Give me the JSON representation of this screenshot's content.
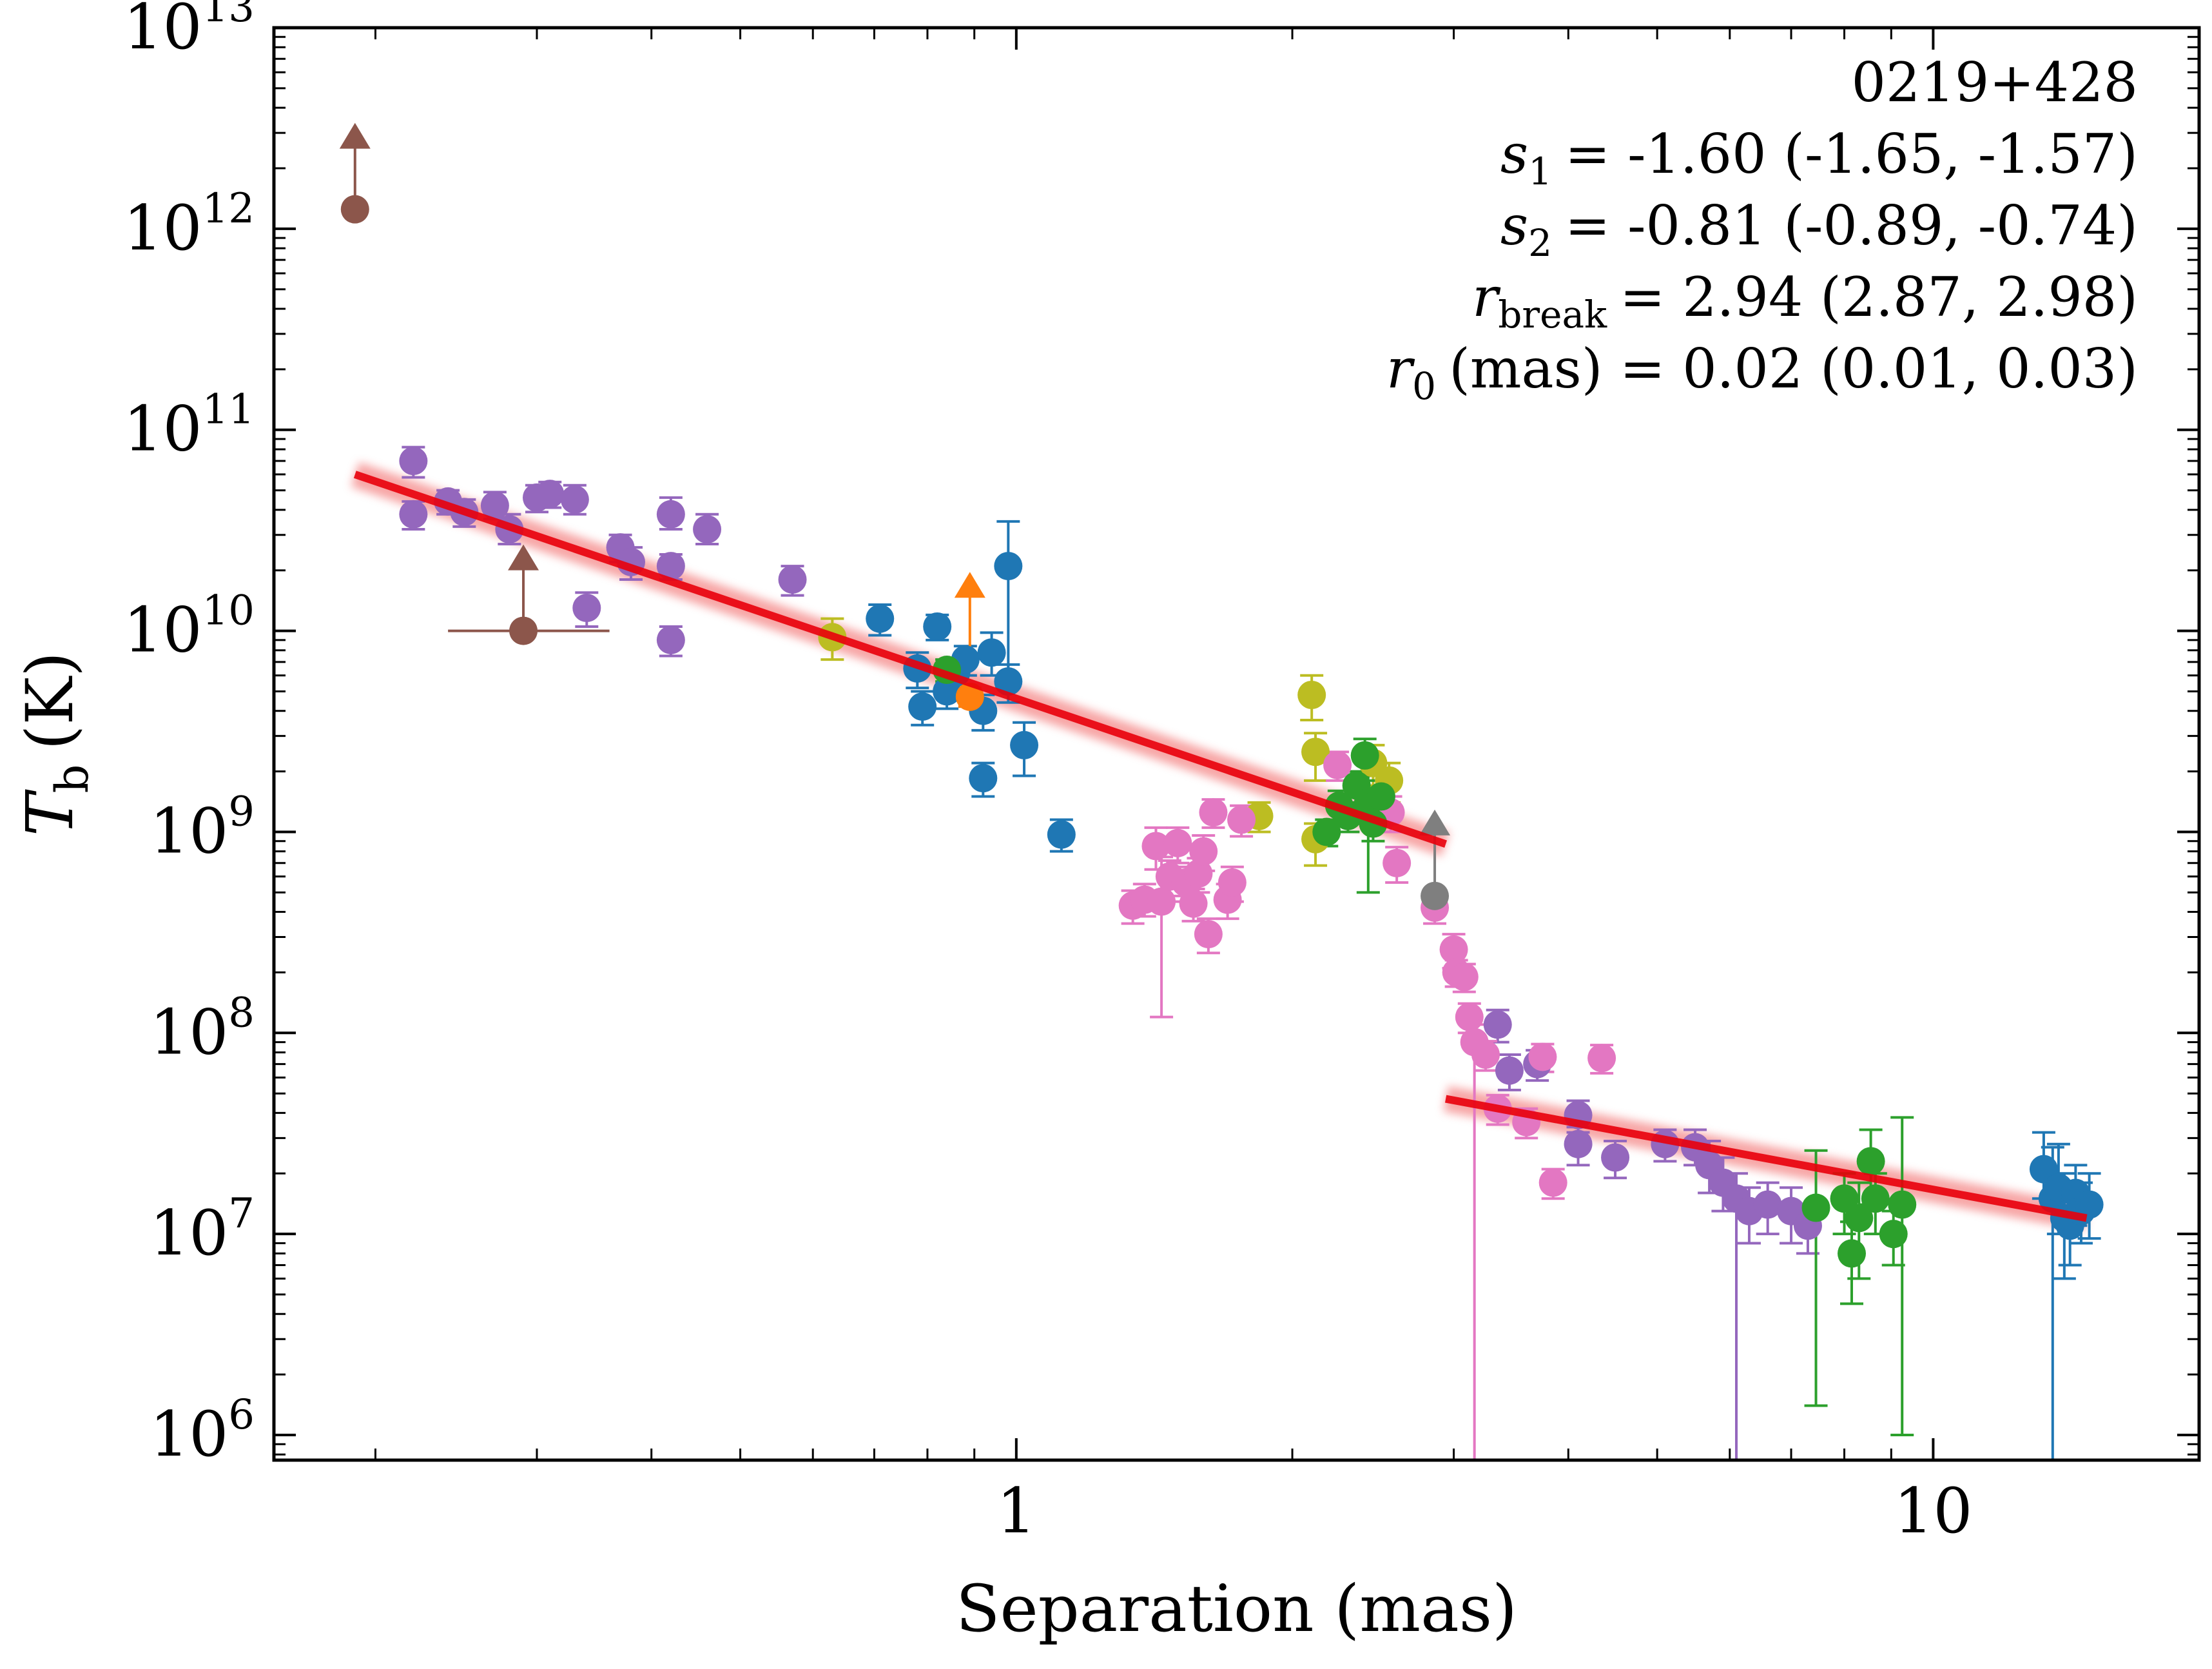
{
  "chart_data": {
    "type": "scatter",
    "title": "",
    "xlabel": "Separation (mas)",
    "ylabel_symbol": "T",
    "ylabel_sub": "b",
    "ylabel_unit": "(K)",
    "xscale": "log",
    "yscale": "log",
    "xlim": [
      0.155,
      19.5
    ],
    "ylim": [
      750000.0,
      10000000000000.0
    ],
    "x_ticks": [
      {
        "value": 1,
        "label": "1"
      },
      {
        "value": 10,
        "label": "10"
      }
    ],
    "y_ticks": [
      {
        "value": 1000000.0,
        "base": "10",
        "exp": "6"
      },
      {
        "value": 10000000.0,
        "base": "10",
        "exp": "7"
      },
      {
        "value": 100000000.0,
        "base": "10",
        "exp": "8"
      },
      {
        "value": 1000000000.0,
        "base": "10",
        "exp": "9"
      },
      {
        "value": 10000000000.0,
        "base": "10",
        "exp": "10"
      },
      {
        "value": 100000000000.0,
        "base": "10",
        "exp": "11"
      },
      {
        "value": 1000000000000.0,
        "base": "10",
        "exp": "12"
      },
      {
        "value": 10000000000000.0,
        "base": "10",
        "exp": "13"
      }
    ],
    "annotations": {
      "source": "0219+428",
      "s1": {
        "sym": "s",
        "sub": "1",
        "text": "= -1.60 (-1.65, -1.57)"
      },
      "s2": {
        "sym": "s",
        "sub": "2",
        "text": "= -0.81 (-0.89, -0.74)"
      },
      "rbreak": {
        "sym": "r",
        "sub": "break",
        "text": "= 2.94 (2.87, 2.98)"
      },
      "r0": {
        "sym": "r",
        "sub": "0",
        "text": "(mas) = 0.02 (0.01, 0.03)"
      }
    },
    "fit_segments": [
      {
        "name": "inner",
        "x": [
          0.19,
          2.94
        ],
        "y": [
          60000000000.0,
          870000000.0
        ],
        "color": "#e8000b"
      },
      {
        "name": "outer",
        "x": [
          2.94,
          14.7
        ],
        "y": [
          47000000.0,
          12000000.0
        ],
        "color": "#e8000b"
      }
    ],
    "series": [
      {
        "name": "brown",
        "color": "#8c564b",
        "points": [
          {
            "x": 0.19,
            "y": 1250000000000.0,
            "lower_limit": true,
            "xlo": null,
            "xhi": null,
            "ylo": null,
            "yhi": null
          },
          {
            "x": 0.29,
            "y": 10000000000.0,
            "lower_limit": true,
            "xlo": 0.24,
            "xhi": 0.36,
            "ylo": null,
            "yhi": null
          }
        ]
      },
      {
        "name": "purple",
        "color": "#9467bd",
        "points": [
          {
            "x": 0.22,
            "y": 70000000000.0,
            "ylo": 58000000000.0,
            "yhi": 82000000000.0
          },
          {
            "x": 0.22,
            "y": 38000000000.0,
            "ylo": 32000000000.0,
            "yhi": 44000000000.0
          },
          {
            "x": 0.24,
            "y": 44000000000.0,
            "ylo": 38000000000.0,
            "yhi": 50000000000.0
          },
          {
            "x": 0.25,
            "y": 39000000000.0,
            "ylo": 33000000000.0,
            "yhi": 45000000000.0
          },
          {
            "x": 0.27,
            "y": 42000000000.0,
            "ylo": 36000000000.0,
            "yhi": 49000000000.0
          },
          {
            "x": 0.28,
            "y": 32000000000.0,
            "ylo": 27000000000.0,
            "yhi": 38000000000.0
          },
          {
            "x": 0.3,
            "y": 46000000000.0,
            "ylo": 39000000000.0,
            "yhi": 53000000000.0
          },
          {
            "x": 0.31,
            "y": 48000000000.0,
            "ylo": 41000000000.0,
            "yhi": 55000000000.0
          },
          {
            "x": 0.33,
            "y": 45000000000.0,
            "ylo": 38000000000.0,
            "yhi": 53000000000.0
          },
          {
            "x": 0.34,
            "y": 13000000000.0,
            "ylo": 10500000000.0,
            "yhi": 15500000000.0
          },
          {
            "x": 0.37,
            "y": 26000000000.0,
            "ylo": 22000000000.0,
            "yhi": 30000000000.0
          },
          {
            "x": 0.38,
            "y": 22000000000.0,
            "ylo": 18000000000.0,
            "yhi": 26000000000.0
          },
          {
            "x": 0.42,
            "y": 38000000000.0,
            "ylo": 32000000000.0,
            "yhi": 46000000000.0
          },
          {
            "x": 0.42,
            "y": 21000000000.0,
            "ylo": 18000000000.0,
            "yhi": 24000000000.0
          },
          {
            "x": 0.42,
            "y": 9000000000.0,
            "ylo": 7500000000.0,
            "yhi": 10500000000.0
          },
          {
            "x": 0.46,
            "y": 32000000000.0,
            "ylo": 27000000000.0,
            "yhi": 38000000000.0
          },
          {
            "x": 0.57,
            "y": 18000000000.0,
            "ylo": 15000000000.0,
            "yhi": 21000000000.0
          },
          {
            "x": 3.35,
            "y": 110000000.0,
            "ylo": 90000000.0,
            "yhi": 130000000.0
          },
          {
            "x": 3.45,
            "y": 65000000.0,
            "ylo": 52000000.0,
            "yhi": 78000000.0
          },
          {
            "x": 3.7,
            "y": 70000000.0,
            "ylo": 58000000.0,
            "yhi": 82000000.0
          },
          {
            "x": 4.1,
            "y": 39000000.0,
            "ylo": 32000000.0,
            "yhi": 46000000.0
          },
          {
            "x": 4.1,
            "y": 28000000.0,
            "ylo": 22000000.0,
            "yhi": 34000000.0
          },
          {
            "x": 4.5,
            "y": 24000000.0,
            "ylo": 19000000.0,
            "yhi": 29000000.0
          },
          {
            "x": 5.1,
            "y": 28000000.0,
            "ylo": 23000000.0,
            "yhi": 33000000.0
          },
          {
            "x": 5.5,
            "y": 27000000.0,
            "ylo": 22000000.0,
            "yhi": 33000000.0
          },
          {
            "x": 5.7,
            "y": 22000000.0,
            "ylo": 16000000.0,
            "yhi": 29000000.0
          },
          {
            "x": 5.9,
            "y": 18000000.0,
            "ylo": 13000000.0,
            "yhi": 24000000.0
          },
          {
            "x": 6.1,
            "y": 15000000.0,
            "ylo": 750000.0,
            "yhi": 20000000.0
          },
          {
            "x": 6.3,
            "y": 13000000.0,
            "ylo": 9000000.0,
            "yhi": 17000000.0
          },
          {
            "x": 6.6,
            "y": 14000000.0,
            "ylo": 10000000.0,
            "yhi": 18000000.0
          },
          {
            "x": 7.0,
            "y": 13000000.0,
            "ylo": 9000000.0,
            "yhi": 17000000.0
          },
          {
            "x": 7.3,
            "y": 11000000.0,
            "ylo": 8000000.0,
            "yhi": 14000000.0
          }
        ]
      },
      {
        "name": "olive",
        "color": "#bcbd22",
        "points": [
          {
            "x": 0.63,
            "y": 9300000000.0,
            "ylo": 7200000000.0,
            "yhi": 11500000000.0
          },
          {
            "x": 1.84,
            "y": 1200000000.0,
            "ylo": 1000000000.0,
            "yhi": 1400000000.0
          },
          {
            "x": 2.1,
            "y": 4800000000.0,
            "ylo": 3600000000.0,
            "yhi": 6000000000.0
          },
          {
            "x": 2.12,
            "y": 2500000000.0,
            "ylo": 1800000000.0,
            "yhi": 3100000000.0
          },
          {
            "x": 2.12,
            "y": 920000000.0,
            "ylo": 680000000.0,
            "yhi": 1100000000.0
          },
          {
            "x": 2.45,
            "y": 2200000000.0,
            "ylo": 1700000000.0,
            "yhi": 2700000000.0
          },
          {
            "x": 2.55,
            "y": 1800000000.0,
            "ylo": 1400000000.0,
            "yhi": 2200000000.0
          }
        ]
      },
      {
        "name": "blue",
        "color": "#1f77b4",
        "points": [
          {
            "x": 0.71,
            "y": 11500000000.0,
            "ylo": 9500000000.0,
            "yhi": 13500000000.0
          },
          {
            "x": 0.78,
            "y": 6500000000.0,
            "ylo": 5200000000.0,
            "yhi": 7800000000.0
          },
          {
            "x": 0.79,
            "y": 4200000000.0,
            "ylo": 3400000000.0,
            "yhi": 5000000000.0
          },
          {
            "x": 0.82,
            "y": 10500000000.0,
            "ylo": 9000000000.0,
            "yhi": 12000000000.0
          },
          {
            "x": 0.84,
            "y": 5000000000.0,
            "ylo": 4100000000.0,
            "yhi": 5900000000.0
          },
          {
            "x": 0.86,
            "y": 6200000000.0,
            "ylo": 5100000000.0,
            "yhi": 7300000000.0
          },
          {
            "x": 0.88,
            "y": 7200000000.0,
            "ylo": 6000000000.0,
            "yhi": 8400000000.0
          },
          {
            "x": 0.92,
            "y": 1850000000.0,
            "ylo": 1500000000.0,
            "yhi": 2200000000.0
          },
          {
            "x": 0.92,
            "y": 4000000000.0,
            "ylo": 3200000000.0,
            "yhi": 4800000000.0
          },
          {
            "x": 0.94,
            "y": 7800000000.0,
            "ylo": 6000000000.0,
            "yhi": 9800000000.0
          },
          {
            "x": 0.98,
            "y": 5600000000.0,
            "ylo": 4400000000.0,
            "yhi": 6800000000.0
          },
          {
            "x": 0.98,
            "y": 21000000000.0,
            "ylo": 6000000000.0,
            "yhi": 35000000000.0
          },
          {
            "x": 1.02,
            "y": 2700000000.0,
            "ylo": 1900000000.0,
            "yhi": 3500000000.0
          },
          {
            "x": 1.12,
            "y": 970000000.0,
            "ylo": 800000000.0,
            "yhi": 1150000000.0
          },
          {
            "x": 13.2,
            "y": 21000000.0,
            "ylo": 15000000.0,
            "yhi": 32000000.0
          },
          {
            "x": 13.5,
            "y": 15000000.0,
            "ylo": 750000.0,
            "yhi": 27000000.0
          },
          {
            "x": 13.7,
            "y": 17000000.0,
            "ylo": 10000000.0,
            "yhi": 28000000.0
          },
          {
            "x": 13.9,
            "y": 12000000.0,
            "ylo": 6000000.0,
            "yhi": 20000000.0
          },
          {
            "x": 14.1,
            "y": 11000000.0,
            "ylo": 7000000.0,
            "yhi": 16000000.0
          },
          {
            "x": 14.3,
            "y": 16000000.0,
            "ylo": 11000000.0,
            "yhi": 22000000.0
          },
          {
            "x": 14.5,
            "y": 13000000.0,
            "ylo": 9000000.0,
            "yhi": 18000000.0
          },
          {
            "x": 14.8,
            "y": 14000000.0,
            "ylo": 9500000.0,
            "yhi": 20000000.0
          }
        ]
      },
      {
        "name": "orange",
        "color": "#ff7f0e",
        "points": [
          {
            "x": 0.89,
            "y": 4700000000.0,
            "lower_limit": false,
            "ylo": 4200000000.0,
            "yhi": 5200000000.0
          },
          {
            "x": 0.89,
            "y": 7300000000.0,
            "lower_limit": true,
            "ylo": null,
            "yhi": null
          }
        ]
      },
      {
        "name": "pink",
        "color": "#e377c2",
        "points": [
          {
            "x": 1.34,
            "y": 430000000.0,
            "ylo": 350000000.0,
            "yhi": 510000000.0
          },
          {
            "x": 1.38,
            "y": 460000000.0,
            "ylo": 380000000.0,
            "yhi": 550000000.0
          },
          {
            "x": 1.42,
            "y": 850000000.0,
            "ylo": 650000000.0,
            "yhi": 1050000000.0
          },
          {
            "x": 1.44,
            "y": 450000000.0,
            "ylo": 120000000.0,
            "yhi": 750000000.0
          },
          {
            "x": 1.47,
            "y": 600000000.0,
            "ylo": 480000000.0,
            "yhi": 720000000.0
          },
          {
            "x": 1.5,
            "y": 880000000.0,
            "ylo": 700000000.0,
            "yhi": 1050000000.0
          },
          {
            "x": 1.53,
            "y": 560000000.0,
            "ylo": 450000000.0,
            "yhi": 670000000.0
          },
          {
            "x": 1.56,
            "y": 440000000.0,
            "ylo": 360000000.0,
            "yhi": 520000000.0
          },
          {
            "x": 1.58,
            "y": 620000000.0,
            "ylo": 500000000.0,
            "yhi": 740000000.0
          },
          {
            "x": 1.6,
            "y": 800000000.0,
            "ylo": 640000000.0,
            "yhi": 960000000.0
          },
          {
            "x": 1.62,
            "y": 310000000.0,
            "ylo": 250000000.0,
            "yhi": 370000000.0
          },
          {
            "x": 1.64,
            "y": 1250000000.0,
            "ylo": 1050000000.0,
            "yhi": 1450000000.0
          },
          {
            "x": 1.7,
            "y": 460000000.0,
            "ylo": 370000000.0,
            "yhi": 550000000.0
          },
          {
            "x": 1.72,
            "y": 560000000.0,
            "ylo": 450000000.0,
            "yhi": 670000000.0
          },
          {
            "x": 1.76,
            "y": 1150000000.0,
            "ylo": 950000000.0,
            "yhi": 1350000000.0
          },
          {
            "x": 2.24,
            "y": 2150000000.0,
            "ylo": 1800000000.0,
            "yhi": 2500000000.0
          },
          {
            "x": 2.56,
            "y": 1250000000.0,
            "ylo": 1000000000.0,
            "yhi": 1500000000.0
          },
          {
            "x": 2.6,
            "y": 700000000.0,
            "ylo": 560000000.0,
            "yhi": 840000000.0
          },
          {
            "x": 2.86,
            "y": 420000000.0,
            "ylo": 350000000.0,
            "yhi": 490000000.0
          },
          {
            "x": 3.0,
            "y": 260000000.0,
            "ylo": 210000000.0,
            "yhi": 310000000.0
          },
          {
            "x": 3.02,
            "y": 200000000.0,
            "ylo": 170000000.0,
            "yhi": 230000000.0
          },
          {
            "x": 3.08,
            "y": 190000000.0,
            "ylo": 160000000.0,
            "yhi": 220000000.0
          },
          {
            "x": 3.12,
            "y": 120000000.0,
            "ylo": 100000000.0,
            "yhi": 140000000.0
          },
          {
            "x": 3.16,
            "y": 90000000.0,
            "ylo": 750000.0,
            "yhi": 110000000.0
          },
          {
            "x": 3.25,
            "y": 78000000.0,
            "ylo": 65000000.0,
            "yhi": 91000000.0
          },
          {
            "x": 3.35,
            "y": 42000000.0,
            "ylo": 35000000.0,
            "yhi": 49000000.0
          },
          {
            "x": 3.6,
            "y": 36000000.0,
            "ylo": 30000000.0,
            "yhi": 42000000.0
          },
          {
            "x": 3.75,
            "y": 76000000.0,
            "ylo": 64000000.0,
            "yhi": 88000000.0
          },
          {
            "x": 3.85,
            "y": 18000000.0,
            "ylo": 15000000.0,
            "yhi": 21000000.0
          },
          {
            "x": 4.35,
            "y": 75000000.0,
            "ylo": 63000000.0,
            "yhi": 87000000.0
          }
        ]
      },
      {
        "name": "green",
        "color": "#2ca02c",
        "points": [
          {
            "x": 0.84,
            "y": 6400000000.0,
            "ylo": 5600000000.0,
            "yhi": 7200000000.0
          },
          {
            "x": 2.18,
            "y": 1000000000.0,
            "ylo": 850000000.0,
            "yhi": 1150000000.0
          },
          {
            "x": 2.25,
            "y": 1350000000.0,
            "ylo": 1100000000.0,
            "yhi": 1600000000.0
          },
          {
            "x": 2.3,
            "y": 1200000000.0,
            "ylo": 1000000000.0,
            "yhi": 1400000000.0
          },
          {
            "x": 2.35,
            "y": 1700000000.0,
            "ylo": 1400000000.0,
            "yhi": 2000000000.0
          },
          {
            "x": 2.4,
            "y": 2400000000.0,
            "ylo": 1900000000.0,
            "yhi": 2900000000.0
          },
          {
            "x": 2.42,
            "y": 1400000000.0,
            "ylo": 500000000.0,
            "yhi": 2500000000.0
          },
          {
            "x": 2.45,
            "y": 1100000000.0,
            "ylo": 900000000.0,
            "yhi": 1300000000.0
          },
          {
            "x": 2.5,
            "y": 1500000000.0,
            "ylo": 1200000000.0,
            "yhi": 1800000000.0
          },
          {
            "x": 7.45,
            "y": 13500000.0,
            "ylo": 1400000.0,
            "yhi": 26000000.0
          },
          {
            "x": 8.0,
            "y": 15000000.0,
            "ylo": 10000000.0,
            "yhi": 20000000.0
          },
          {
            "x": 8.15,
            "y": 8000000.0,
            "ylo": 4500000.0,
            "yhi": 11500000.0
          },
          {
            "x": 8.3,
            "y": 12000000.0,
            "ylo": 6000000.0,
            "yhi": 18000000.0
          },
          {
            "x": 8.55,
            "y": 23000000.0,
            "ylo": 14000000.0,
            "yhi": 33000000.0
          },
          {
            "x": 8.65,
            "y": 15000000.0,
            "ylo": 10000000.0,
            "yhi": 20000000.0
          },
          {
            "x": 9.05,
            "y": 10000000.0,
            "ylo": 7000000.0,
            "yhi": 13000000.0
          },
          {
            "x": 9.25,
            "y": 14000000.0,
            "ylo": 1000000.0,
            "yhi": 38000000.0
          }
        ]
      },
      {
        "name": "gray",
        "color": "#7f7f7f",
        "points": [
          {
            "x": 2.86,
            "y": 480000000.0,
            "lower_limit": true,
            "ylo": null,
            "yhi": null
          }
        ]
      }
    ]
  }
}
